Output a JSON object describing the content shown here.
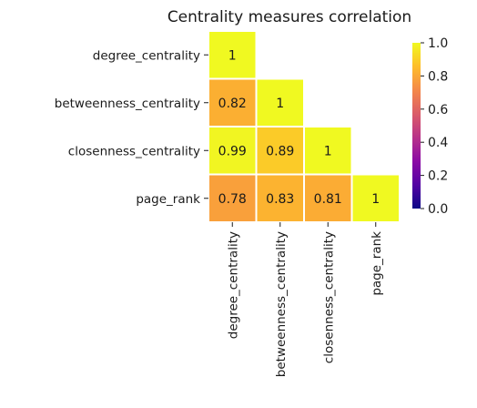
{
  "chart_data": {
    "type": "heatmap",
    "title": "Centrality measures correlation",
    "variables": [
      "degree_centrality",
      "betweenness_centrality",
      "closenness_centrality",
      "page_rank"
    ],
    "mask": "upper-triangle",
    "cells": [
      {
        "row": 0,
        "col": 0,
        "value": 1,
        "label": "1"
      },
      {
        "row": 1,
        "col": 0,
        "value": 0.82,
        "label": "0.82"
      },
      {
        "row": 1,
        "col": 1,
        "value": 1,
        "label": "1"
      },
      {
        "row": 2,
        "col": 0,
        "value": 0.99,
        "label": "0.99"
      },
      {
        "row": 2,
        "col": 1,
        "value": 0.89,
        "label": "0.89"
      },
      {
        "row": 2,
        "col": 2,
        "value": 1,
        "label": "1"
      },
      {
        "row": 3,
        "col": 0,
        "value": 0.78,
        "label": "0.78"
      },
      {
        "row": 3,
        "col": 1,
        "value": 0.83,
        "label": "0.83"
      },
      {
        "row": 3,
        "col": 2,
        "value": 0.81,
        "label": "0.81"
      },
      {
        "row": 3,
        "col": 3,
        "value": 1,
        "label": "1"
      }
    ],
    "colorbar": {
      "colormap": "plasma",
      "range": [
        0,
        1
      ],
      "ticks": [
        {
          "value": 0,
          "label": "0.0"
        },
        {
          "value": 0.2,
          "label": "0.2"
        },
        {
          "value": 0.4,
          "label": "0.4"
        },
        {
          "value": 0.6,
          "label": "0.6"
        },
        {
          "value": 0.8,
          "label": "0.8"
        },
        {
          "value": 1,
          "label": "1.0"
        }
      ],
      "stops": [
        "#0d0887",
        "#5302a3",
        "#8b0aa5",
        "#b83289",
        "#db5c68",
        "#f48849",
        "#febd2a",
        "#f0f921"
      ]
    },
    "cell_border_color": "#ffffff"
  }
}
